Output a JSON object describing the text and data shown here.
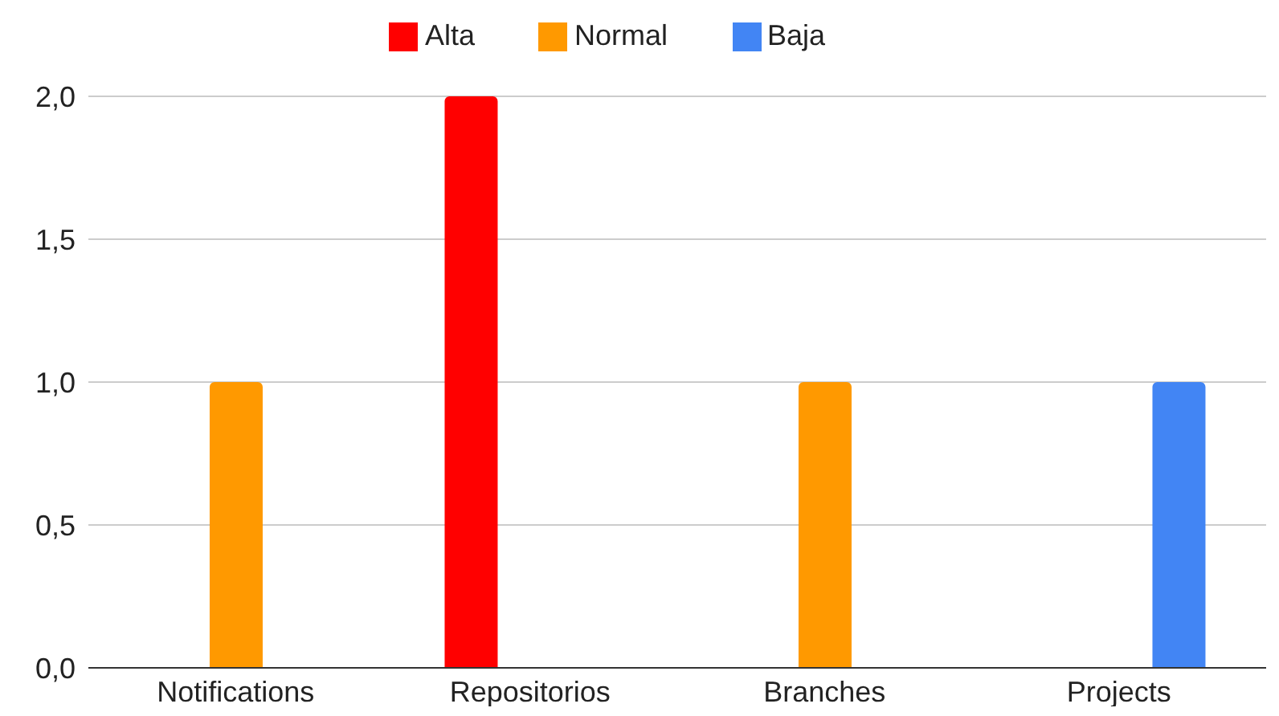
{
  "chart_data": {
    "type": "bar",
    "categories": [
      "Notifications",
      "Repositorios",
      "Branches",
      "Projects"
    ],
    "series": [
      {
        "name": "Alta",
        "color": "#ff0000",
        "values": [
          null,
          2,
          null,
          null
        ]
      },
      {
        "name": "Normal",
        "color": "#ff9900",
        "values": [
          1,
          null,
          1,
          null
        ]
      },
      {
        "name": "Baja",
        "color": "#4285f4",
        "values": [
          null,
          null,
          null,
          1
        ]
      }
    ],
    "ylim": [
      0,
      2
    ],
    "yticks": [
      {
        "value": 0,
        "label": "0,0"
      },
      {
        "value": 0.5,
        "label": "0,5"
      },
      {
        "value": 1,
        "label": "1,0"
      },
      {
        "value": 1.5,
        "label": "1,5"
      },
      {
        "value": 2,
        "label": "2,0"
      }
    ],
    "grid": "y",
    "legend": "top"
  }
}
